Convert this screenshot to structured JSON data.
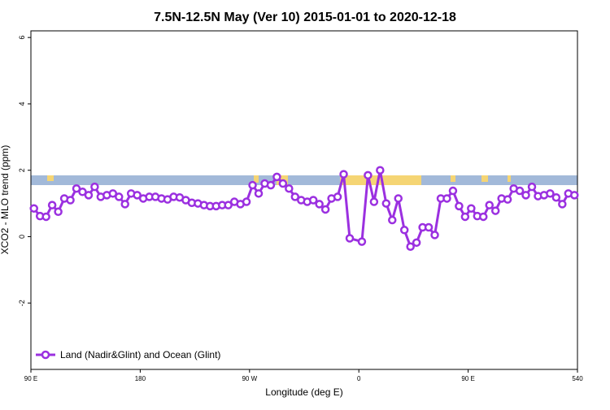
{
  "chart_data": {
    "type": "line",
    "title": "7.5N-12.5N May (Ver 10)   2015-01-01 to 2020-12-18",
    "x_label": "Longitude (deg E)",
    "y_label": "XCO2 - MLO trend (ppm)",
    "xlim": [
      90,
      540
    ],
    "ylim": [
      -4,
      6.2
    ],
    "xticks": [
      {
        "value": 90,
        "label": "90 E"
      },
      180,
      {
        "value": 270,
        "label": "90 W"
      },
      {
        "value": 360,
        "label": "0"
      },
      {
        "value": 450,
        "label": "90 E"
      },
      540
    ],
    "yticks": [
      -2,
      0,
      2,
      4,
      6
    ],
    "legend_position": "bottom-left",
    "x": [
      92.5,
      97.5,
      102.5,
      107.5,
      112.5,
      117.5,
      122.5,
      127.5,
      132.5,
      137.5,
      142.5,
      147.5,
      152.5,
      157.5,
      162.5,
      167.5,
      172.5,
      177.5,
      182.5,
      187.5,
      192.5,
      197.5,
      202.5,
      207.5,
      212.5,
      217.5,
      222.5,
      227.5,
      232.5,
      237.5,
      242.5,
      247.5,
      252.5,
      257.5,
      262.5,
      267.5,
      272.5,
      277.5,
      282.5,
      287.5,
      292.5,
      297.5,
      302.5,
      307.5,
      312.5,
      317.5,
      322.5,
      327.5,
      332.5,
      337.5,
      342.5,
      347.5,
      352.5,
      362.5,
      367.5,
      372.5,
      377.5,
      382.5,
      387.5,
      392.5,
      397.5,
      402.5,
      407.5,
      412.5,
      417.5,
      422.5,
      427.5,
      432.5,
      437.5,
      442.5,
      447.5,
      452.5,
      457.5,
      462.5,
      467.5,
      472.5,
      477.5,
      482.5,
      487.5,
      492.5,
      497.5,
      502.5,
      507.5,
      512.5,
      517.5,
      522.5,
      527.5,
      532.5,
      537.5
    ],
    "series": [
      {
        "name": "Land (Nadir&Glint) and Ocean (Glint)",
        "color": "#9b30e0",
        "values": [
          0.85,
          0.62,
          0.6,
          0.95,
          0.75,
          1.15,
          1.1,
          1.45,
          1.35,
          1.25,
          1.5,
          1.2,
          1.25,
          1.3,
          1.2,
          0.98,
          1.3,
          1.25,
          1.15,
          1.2,
          1.2,
          1.15,
          1.12,
          1.2,
          1.18,
          1.1,
          1.02,
          1.0,
          0.95,
          0.92,
          0.92,
          0.95,
          0.95,
          1.05,
          0.98,
          1.05,
          1.55,
          1.3,
          1.6,
          1.55,
          1.8,
          1.6,
          1.45,
          1.2,
          1.1,
          1.05,
          1.1,
          0.98,
          0.82,
          1.15,
          1.2,
          1.88,
          -0.05,
          -0.15,
          1.85,
          1.05,
          2.0,
          1.0,
          0.5,
          1.15,
          0.2,
          -0.3,
          -0.18,
          0.28,
          0.28,
          0.05,
          1.15,
          1.15,
          1.38,
          0.92,
          0.6,
          0.85,
          0.62,
          0.6,
          0.95,
          0.78,
          1.15,
          1.12,
          1.45,
          1.38,
          1.25,
          1.5,
          1.22,
          1.25,
          1.3,
          1.18,
          0.98,
          1.3,
          1.25
        ]
      }
    ]
  }
}
